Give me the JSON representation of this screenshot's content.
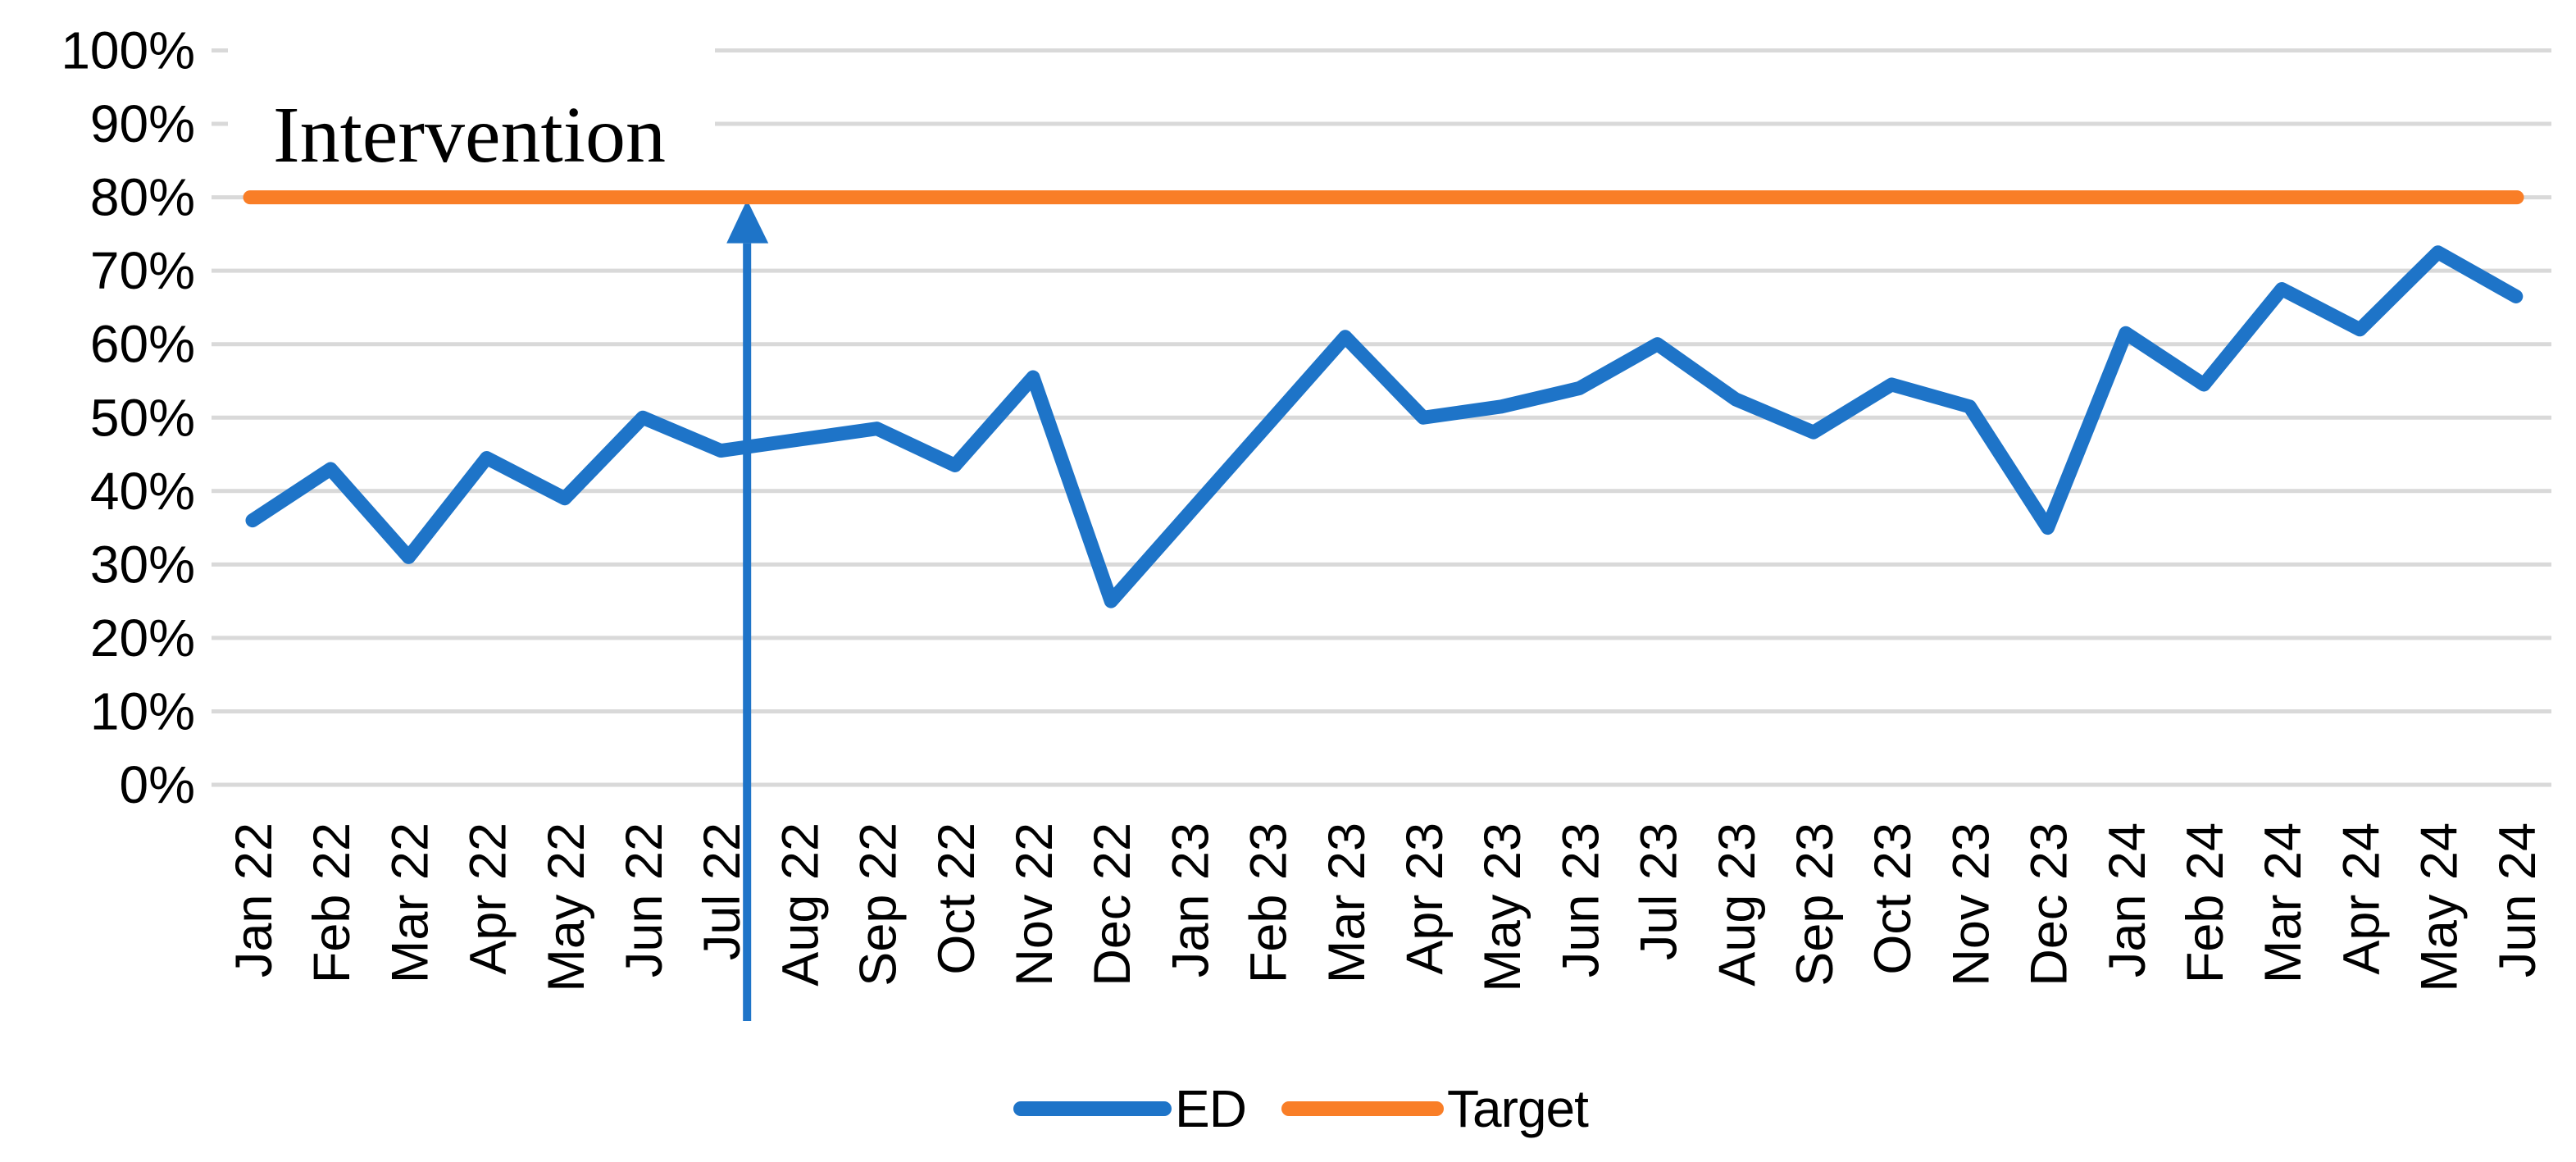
{
  "chart_data": {
    "type": "line",
    "categories": [
      "Jan 22",
      "Feb 22",
      "Mar 22",
      "Apr 22",
      "May 22",
      "Jun 22",
      "Jul 22",
      "Aug 22",
      "Sep 22",
      "Oct 22",
      "Nov 22",
      "Dec 22",
      "Jan 23",
      "Feb 23",
      "Mar 23",
      "Apr 23",
      "May 23",
      "Jun 23",
      "Jul 23",
      "Aug 23",
      "Sep 23",
      "Oct 23",
      "Nov 23",
      "Dec 23",
      "Jan 24",
      "Feb 24",
      "Mar 24",
      "Apr 24",
      "May 24",
      "Jun 24"
    ],
    "series": [
      {
        "name": "ED",
        "color": "#1E74C8",
        "values": [
          36,
          43,
          31,
          44.5,
          39,
          50,
          45.5,
          47,
          48.5,
          43.5,
          55.5,
          25,
          37,
          49,
          61,
          50,
          51.5,
          54,
          60,
          52.5,
          48,
          54.5,
          51.5,
          35,
          61.5,
          54.5,
          67.5,
          62,
          72.5,
          66.5
        ]
      },
      {
        "name": "Target",
        "color": "#F97E27",
        "constant_value": 80
      }
    ],
    "annotation": {
      "text": "Intervention",
      "arrow_month": "Jul 22",
      "arrow_month_index": 6,
      "points_to_value": 80,
      "arrow_color": "#1E74C8",
      "box_fill": "#FFFFFF"
    },
    "y_axis": {
      "min": 0,
      "max": 100,
      "step": 10,
      "unit": "percent",
      "tick_labels": [
        "0%",
        "10%",
        "20%",
        "30%",
        "40%",
        "50%",
        "60%",
        "70%",
        "80%",
        "90%",
        "100%"
      ]
    },
    "x_axis": {
      "label_rotation_degrees": 90
    },
    "legend": {
      "position": "bottom-center",
      "entries": [
        "ED",
        "Target"
      ]
    },
    "grid": {
      "show_horizontal": true,
      "color": "#D9D9D9"
    },
    "background_color": "#FFFFFF",
    "text_color": "#000000"
  }
}
